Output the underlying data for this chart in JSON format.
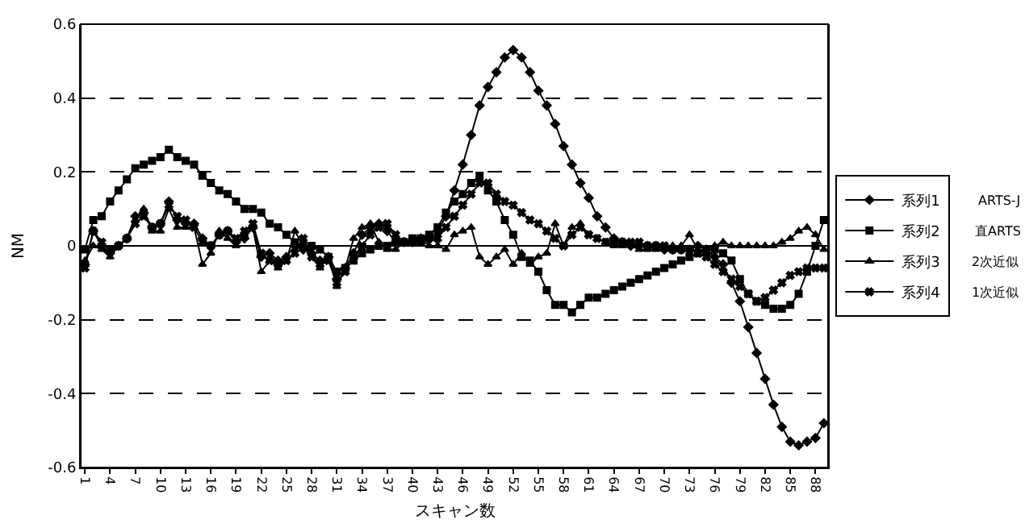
{
  "chart_data": {
    "type": "line",
    "xlabel": "スキャン数",
    "ylabel": "NM",
    "categories": [
      "1",
      null,
      null,
      "4",
      null,
      null,
      "7",
      null,
      null,
      "10",
      null,
      null,
      "13",
      null,
      null,
      "16",
      null,
      null,
      "19",
      null,
      null,
      "22",
      null,
      null,
      "25",
      null,
      null,
      "28",
      null,
      null,
      "31",
      null,
      null,
      "34",
      null,
      null,
      "37",
      null,
      null,
      "40",
      null,
      null,
      "43",
      null,
      null,
      "46",
      null,
      null,
      "49",
      null,
      null,
      "52",
      null,
      null,
      "55",
      null,
      null,
      "58",
      null,
      null,
      "61",
      null,
      null,
      "64",
      null,
      null,
      "67",
      null,
      null,
      "70",
      null,
      null,
      "73",
      null,
      null,
      "76",
      null,
      null,
      "79",
      null,
      null,
      "82",
      null,
      null,
      "85",
      null,
      null,
      "88",
      null
    ],
    "series": [
      {
        "name": "系列1",
        "color": "#000000",
        "marker": "diamond",
        "values": [
          -0.05,
          0.04,
          0.0,
          -0.02,
          0.0,
          0.02,
          0.08,
          0.09,
          0.05,
          0.06,
          0.12,
          0.07,
          0.06,
          0.06,
          0.02,
          0.0,
          0.03,
          0.04,
          0.01,
          0.02,
          0.05,
          -0.03,
          -0.02,
          -0.04,
          -0.03,
          0.0,
          -0.01,
          -0.02,
          -0.04,
          -0.03,
          -0.09,
          -0.06,
          -0.02,
          0.03,
          0.05,
          0.06,
          0.04,
          0.01,
          0.01,
          0.01,
          0.02,
          0.02,
          0.04,
          0.08,
          0.15,
          0.22,
          0.3,
          0.38,
          0.43,
          0.47,
          0.51,
          0.53,
          0.51,
          0.47,
          0.42,
          0.38,
          0.33,
          0.27,
          0.22,
          0.17,
          0.13,
          0.08,
          0.05,
          0.02,
          0.01,
          0.0,
          0.0,
          0.0,
          0.0,
          -0.01,
          -0.01,
          -0.01,
          -0.01,
          0.0,
          -0.01,
          -0.03,
          -0.05,
          -0.1,
          -0.15,
          -0.22,
          -0.29,
          -0.36,
          -0.43,
          -0.49,
          -0.53,
          -0.54,
          -0.53,
          -0.52,
          -0.48
        ]
      },
      {
        "name": "系列2",
        "color": "#000000",
        "marker": "square",
        "values": [
          -0.01,
          0.07,
          0.08,
          0.12,
          0.15,
          0.18,
          0.21,
          0.22,
          0.23,
          0.24,
          0.26,
          0.24,
          0.23,
          0.22,
          0.19,
          0.17,
          0.15,
          0.14,
          0.12,
          0.1,
          0.1,
          0.09,
          0.06,
          0.05,
          0.03,
          0.01,
          0.0,
          0.0,
          -0.01,
          -0.03,
          -0.07,
          -0.06,
          -0.04,
          -0.02,
          -0.01,
          0.0,
          0.0,
          0.01,
          0.01,
          0.02,
          0.02,
          0.03,
          0.05,
          0.09,
          0.12,
          0.14,
          0.17,
          0.19,
          0.15,
          0.12,
          0.07,
          0.03,
          -0.03,
          -0.04,
          -0.07,
          -0.12,
          -0.16,
          -0.16,
          -0.18,
          -0.16,
          -0.14,
          -0.14,
          -0.13,
          -0.12,
          -0.11,
          -0.1,
          -0.09,
          -0.08,
          -0.07,
          -0.06,
          -0.05,
          -0.04,
          -0.03,
          -0.02,
          -0.01,
          -0.01,
          -0.02,
          -0.04,
          -0.09,
          -0.13,
          -0.15,
          -0.16,
          -0.17,
          -0.17,
          -0.16,
          -0.13,
          -0.07,
          0.0,
          0.07
        ]
      },
      {
        "name": "系列3",
        "color": "#000000",
        "marker": "triangle",
        "values": [
          -0.04,
          0.0,
          -0.01,
          -0.03,
          0.0,
          0.02,
          0.07,
          0.1,
          0.04,
          0.04,
          0.1,
          0.05,
          0.05,
          0.05,
          -0.05,
          -0.02,
          0.04,
          0.02,
          0.0,
          0.03,
          0.05,
          -0.07,
          -0.04,
          -0.06,
          -0.04,
          0.04,
          0.0,
          -0.03,
          -0.06,
          -0.03,
          -0.11,
          -0.06,
          0.02,
          0.05,
          0.06,
          0.01,
          -0.01,
          -0.01,
          0.01,
          0.01,
          0.02,
          0.0,
          0.0,
          -0.01,
          0.03,
          0.04,
          0.05,
          -0.03,
          -0.05,
          -0.03,
          -0.01,
          -0.05,
          -0.02,
          -0.05,
          -0.03,
          -0.02,
          0.06,
          0.0,
          0.05,
          0.06,
          0.03,
          0.02,
          0.01,
          0.0,
          0.0,
          0.0,
          -0.01,
          -0.01,
          -0.01,
          -0.01,
          0.0,
          0.0,
          0.03,
          -0.01,
          -0.02,
          0.0,
          0.01,
          0.0,
          0.0,
          0.0,
          0.0,
          0.0,
          0.0,
          0.01,
          0.02,
          0.04,
          0.05,
          0.03,
          -0.01
        ]
      },
      {
        "name": "系列4",
        "color": "#000000",
        "marker": "cross",
        "values": [
          -0.06,
          0.04,
          0.01,
          -0.01,
          0.0,
          0.02,
          0.06,
          0.08,
          0.05,
          0.06,
          0.11,
          0.08,
          0.07,
          0.05,
          0.01,
          0.0,
          0.03,
          0.04,
          0.02,
          0.04,
          0.06,
          -0.02,
          -0.04,
          -0.05,
          -0.04,
          -0.02,
          0.02,
          -0.03,
          -0.05,
          -0.04,
          -0.1,
          -0.07,
          -0.03,
          0.0,
          0.03,
          0.05,
          0.06,
          0.03,
          0.01,
          0.01,
          0.01,
          0.02,
          0.02,
          0.05,
          0.08,
          0.11,
          0.14,
          0.17,
          0.17,
          0.14,
          0.12,
          0.11,
          0.09,
          0.07,
          0.06,
          0.04,
          0.02,
          0.0,
          0.03,
          0.05,
          0.03,
          0.02,
          0.01,
          0.01,
          0.01,
          0.01,
          0.01,
          0.0,
          0.0,
          0.0,
          -0.01,
          -0.01,
          -0.01,
          -0.02,
          -0.03,
          -0.05,
          -0.07,
          -0.09,
          -0.11,
          -0.13,
          -0.15,
          -0.14,
          -0.12,
          -0.1,
          -0.08,
          -0.07,
          -0.06,
          -0.06,
          -0.06
        ]
      }
    ],
    "annotations": [
      "ARTS-J",
      "直ARTS",
      "2次近似",
      "1次近似"
    ],
    "ylim": [
      -0.6,
      0.6
    ],
    "yticks": [
      -0.6,
      -0.4,
      -0.2,
      0,
      0.2,
      0.4,
      0.6
    ],
    "grid": "y",
    "line_style": "solid",
    "legend": "right"
  }
}
